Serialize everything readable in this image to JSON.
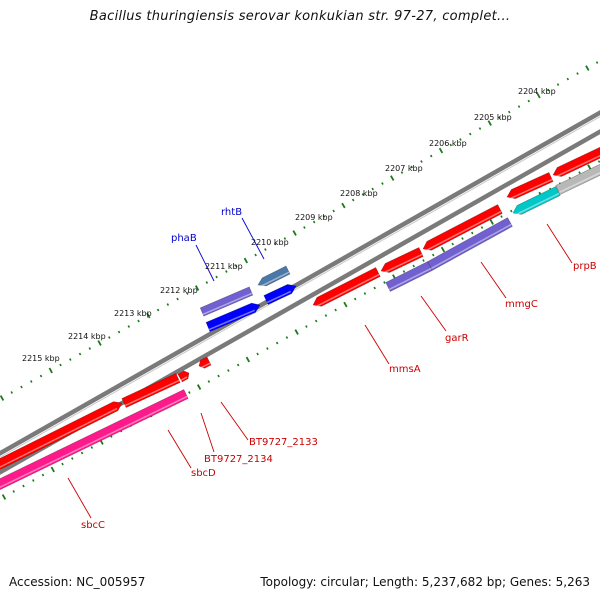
{
  "header": {
    "title": "Bacillus thuringiensis serovar konkukian str. 97-27, complet..."
  },
  "footer": {
    "accession": "Accession: NC_005957",
    "topology": "Topology: circular; Length: 5,237,682 bp; Genes: 5,263"
  },
  "ruler": {
    "unit": "kbp",
    "labels": [
      "2204 kbp",
      "2205 kbp",
      "2206 kbp",
      "2207 kbp",
      "2208 kbp",
      "2209 kbp",
      "2210 kbp",
      "2211 kbp",
      "2212 kbp",
      "2213 kbp",
      "2214 kbp",
      "2215 kbp"
    ]
  },
  "genes": {
    "forward": [
      "phaB",
      "rhtB"
    ],
    "reverse": [
      "mmsA",
      "garR",
      "mmgC",
      "prpB",
      "BT9727_2133",
      "BT9727_2134",
      "sbcD",
      "sbcC"
    ]
  },
  "colors": {
    "backbone": "#7a7a7a",
    "ruler_ticks": "#1a7a1a",
    "gene_red": "#ff0000",
    "gene_purple": "#7060d0",
    "gene_blue": "#0000ff",
    "gene_steel": "#4a78a8",
    "gene_cyan": "#00c8c8",
    "gene_grey": "#b8b8b8",
    "gene_pink": "#ff1a8c",
    "label_forward": "#0000cc",
    "label_reverse": "#cc0000"
  }
}
